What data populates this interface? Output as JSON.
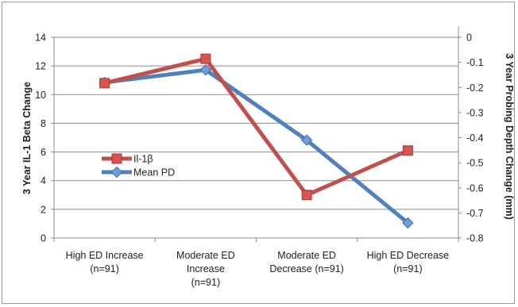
{
  "chart_data": {
    "type": "line",
    "categories": [
      [
        "High ED Increase",
        "(n=91)"
      ],
      [
        "Moderate ED",
        "Increase",
        "(n=91)"
      ],
      [
        "Moderate ED",
        "Decrease (n=91)"
      ],
      [
        "High ED Decrease",
        "(n=91)"
      ]
    ],
    "y_left": {
      "label": "3 Year IL-1 Beta Change",
      "min": 0,
      "max": 14,
      "step": 2,
      "ticks": [
        "0",
        "2",
        "4",
        "6",
        "8",
        "10",
        "12",
        "14"
      ]
    },
    "y_right": {
      "label": "3 Year Probing Depth Change (mm)",
      "min": -0.8,
      "max": 0,
      "step": 0.1,
      "ticks": [
        "0",
        "-0.1",
        "-0.2",
        "-0.3",
        "-0.4",
        "-0.5",
        "-0.6",
        "-0.7",
        "-0.8"
      ]
    },
    "series": [
      {
        "name": "Il-1β",
        "axis": "left",
        "marker": "square",
        "color": "#c0504d",
        "values": [
          10.8,
          12.5,
          3.0,
          6.1
        ]
      },
      {
        "name": "Mean PD",
        "axis": "right",
        "marker": "diamond",
        "color": "#4f81bd",
        "values": [
          -0.18,
          -0.13,
          -0.41,
          -0.74
        ]
      }
    ],
    "grid": true,
    "legend_position": "center-left"
  }
}
